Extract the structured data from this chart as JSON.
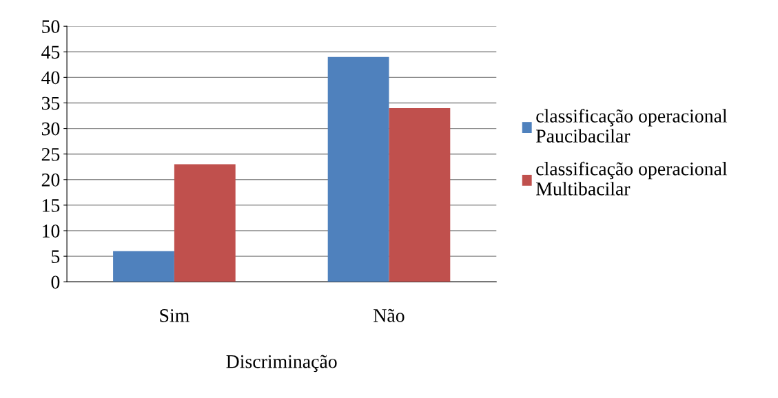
{
  "chart_data": {
    "type": "bar",
    "categories": [
      "Sim",
      "Não"
    ],
    "xlabel": "Discriminação",
    "series": [
      {
        "name": "classificação operacional Paucibacilar",
        "color": "#4f81bd",
        "values": [
          6,
          44
        ]
      },
      {
        "name": "classificação operacional Multibacilar",
        "color": "#c0504d",
        "values": [
          23,
          34
        ]
      }
    ],
    "ylim": [
      0,
      50
    ],
    "yticks": [
      0,
      5,
      10,
      15,
      20,
      25,
      30,
      35,
      40,
      45,
      50
    ],
    "grid": "y",
    "legend": "right"
  }
}
